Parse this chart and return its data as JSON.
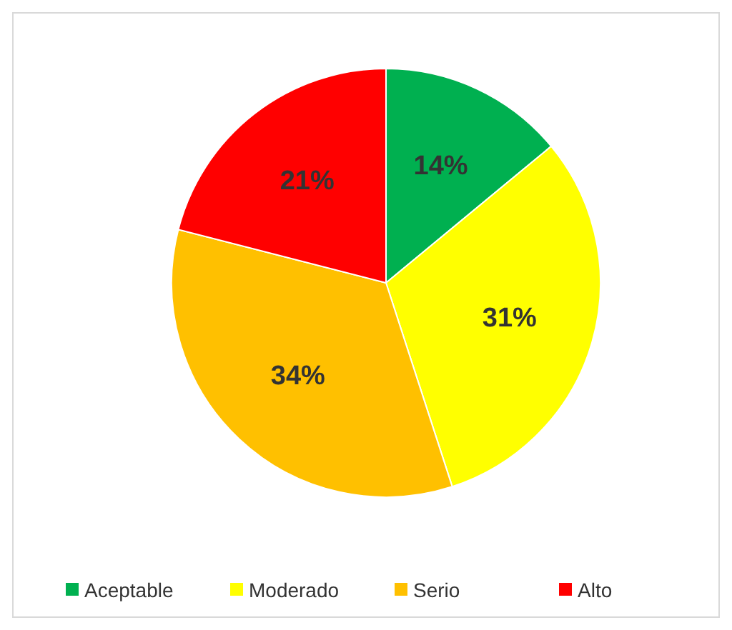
{
  "chart_data": {
    "type": "pie",
    "categories": [
      "Aceptable",
      "Moderado",
      "Serio",
      "Alto"
    ],
    "values": [
      14,
      31,
      34,
      21
    ],
    "colors": [
      "#00b050",
      "#ffff00",
      "#ffc000",
      "#ff0000"
    ],
    "value_labels": [
      "14%",
      "31%",
      "34%",
      "21%"
    ],
    "legend": "bottom"
  }
}
